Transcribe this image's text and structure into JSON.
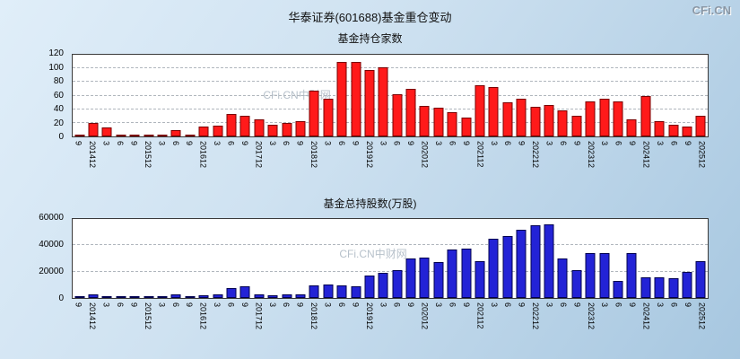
{
  "header": {
    "title": "华泰证券(601688)基金重仓变动",
    "logo": "CFi.CN"
  },
  "watermark": "CFi.CN中财网",
  "chart_data": [
    {
      "type": "bar",
      "title": "基金持仓家数",
      "xlabel": "",
      "ylabel": "",
      "ylim": [
        0,
        120
      ],
      "yticks": [
        0,
        20,
        40,
        60,
        80,
        100,
        120
      ],
      "grid": "horizontal-dashed",
      "legend": "none",
      "bar_color": "#ff1a1a",
      "bar_border": "#7a0000",
      "categories": [
        "9",
        "201412",
        "3",
        "6",
        "9",
        "201512",
        "3",
        "6",
        "9",
        "201612",
        "3",
        "6",
        "9",
        "201712",
        "3",
        "6",
        "9",
        "201812",
        "3",
        "6",
        "9",
        "201912",
        "3",
        "6",
        "9",
        "202012",
        "3",
        "6",
        "9",
        "202112",
        "3",
        "6",
        "9",
        "202212",
        "3",
        "6",
        "9",
        "202312",
        "3",
        "6",
        "9",
        "202412",
        "3",
        "6",
        "9",
        "202512"
      ],
      "values": [
        2,
        20,
        13,
        2,
        3,
        2,
        2,
        9,
        3,
        15,
        16,
        33,
        30,
        25,
        17,
        20,
        22,
        67,
        55,
        110,
        110,
        97,
        101,
        62,
        70,
        45,
        42,
        35,
        28,
        75,
        73,
        50,
        55,
        43,
        46,
        38,
        30,
        52,
        56,
        52,
        25,
        60,
        22,
        17,
        15,
        30
      ]
    },
    {
      "type": "bar",
      "title": "基金总持股数(万股)",
      "xlabel": "",
      "ylabel": "",
      "ylim": [
        0,
        60000
      ],
      "yticks": [
        0,
        20000,
        40000,
        60000
      ],
      "grid": "horizontal-dashed",
      "legend": "none",
      "bar_color": "#2323d6",
      "bar_border": "#00004f",
      "categories": [
        "9",
        "201412",
        "3",
        "6",
        "9",
        "201512",
        "3",
        "6",
        "9",
        "201612",
        "3",
        "6",
        "9",
        "201712",
        "3",
        "6",
        "9",
        "201812",
        "3",
        "6",
        "9",
        "201912",
        "3",
        "6",
        "9",
        "202012",
        "3",
        "6",
        "9",
        "202112",
        "3",
        "6",
        "9",
        "202212",
        "3",
        "6",
        "9",
        "202312",
        "3",
        "6",
        "9",
        "202412",
        "3",
        "6",
        "9",
        "202512"
      ],
      "values": [
        500,
        3000,
        400,
        300,
        400,
        300,
        300,
        2500,
        500,
        2000,
        2500,
        7500,
        9000,
        3000,
        2000,
        2500,
        3000,
        9500,
        10000,
        9500,
        9000,
        17000,
        19000,
        21000,
        30000,
        31000,
        27000,
        37000,
        37500,
        28000,
        45000,
        47000,
        52000,
        55000,
        56000,
        30000,
        21000,
        34000,
        34000,
        13000,
        34000,
        16000,
        16000,
        15000,
        20000,
        28000
      ]
    }
  ]
}
